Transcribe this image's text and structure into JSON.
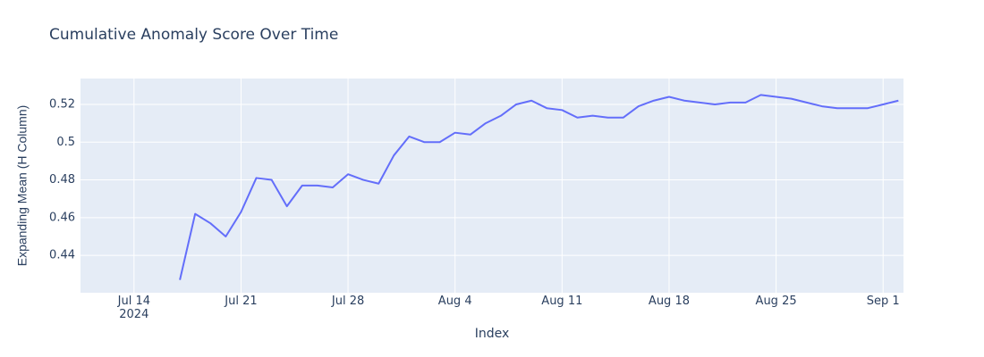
{
  "chart_data": {
    "type": "line",
    "title": "Cumulative Anomaly Score Over Time",
    "x_label": "Index",
    "y_label": "Expanding Mean (H Column)",
    "x": [
      "2024-07-17",
      "2024-07-18",
      "2024-07-19",
      "2024-07-20",
      "2024-07-21",
      "2024-07-22",
      "2024-07-23",
      "2024-07-24",
      "2024-07-25",
      "2024-07-26",
      "2024-07-27",
      "2024-07-28",
      "2024-07-29",
      "2024-07-30",
      "2024-07-31",
      "2024-08-01",
      "2024-08-02",
      "2024-08-03",
      "2024-08-04",
      "2024-08-05",
      "2024-08-06",
      "2024-08-07",
      "2024-08-08",
      "2024-08-09",
      "2024-08-10",
      "2024-08-11",
      "2024-08-12",
      "2024-08-13",
      "2024-08-14",
      "2024-08-15",
      "2024-08-16",
      "2024-08-17",
      "2024-08-18",
      "2024-08-19",
      "2024-08-20",
      "2024-08-21",
      "2024-08-22",
      "2024-08-23",
      "2024-08-24",
      "2024-08-25",
      "2024-08-26",
      "2024-08-27",
      "2024-08-28",
      "2024-08-29",
      "2024-08-30",
      "2024-08-31",
      "2024-09-01",
      "2024-09-02"
    ],
    "series": [
      {
        "name": "Expanding Mean (H Column)",
        "color": "#636efa",
        "values": [
          0.427,
          0.462,
          0.457,
          0.45,
          0.463,
          0.481,
          0.48,
          0.466,
          0.477,
          0.477,
          0.476,
          0.483,
          0.48,
          0.478,
          0.493,
          0.503,
          0.5,
          0.5,
          0.505,
          0.504,
          0.51,
          0.514,
          0.52,
          0.522,
          0.518,
          0.517,
          0.513,
          0.514,
          0.513,
          0.513,
          0.519,
          0.522,
          0.524,
          0.522,
          0.521,
          0.52,
          0.521,
          0.521,
          0.525,
          0.524,
          0.523,
          0.521,
          0.519,
          0.518,
          0.518,
          0.518,
          0.52,
          0.522
        ]
      }
    ],
    "xlim": [
      "2024-07-10T12:00:00",
      "2024-09-02T08:00:00"
    ],
    "xticks": [
      {
        "value": "2024-07-14",
        "label": "Jul 14\n2024"
      },
      {
        "value": "2024-07-21",
        "label": "Jul 21"
      },
      {
        "value": "2024-07-28",
        "label": "Jul 28"
      },
      {
        "value": "2024-08-04",
        "label": "Aug 4"
      },
      {
        "value": "2024-08-11",
        "label": "Aug 11"
      },
      {
        "value": "2024-08-18",
        "label": "Aug 18"
      },
      {
        "value": "2024-08-25",
        "label": "Aug 25"
      },
      {
        "value": "2024-09-01",
        "label": "Sep 1"
      }
    ],
    "ylim": [
      0.4202,
      0.5337
    ],
    "yticks": [
      0.44,
      0.46,
      0.48,
      0.5,
      0.52
    ],
    "grid": true
  }
}
